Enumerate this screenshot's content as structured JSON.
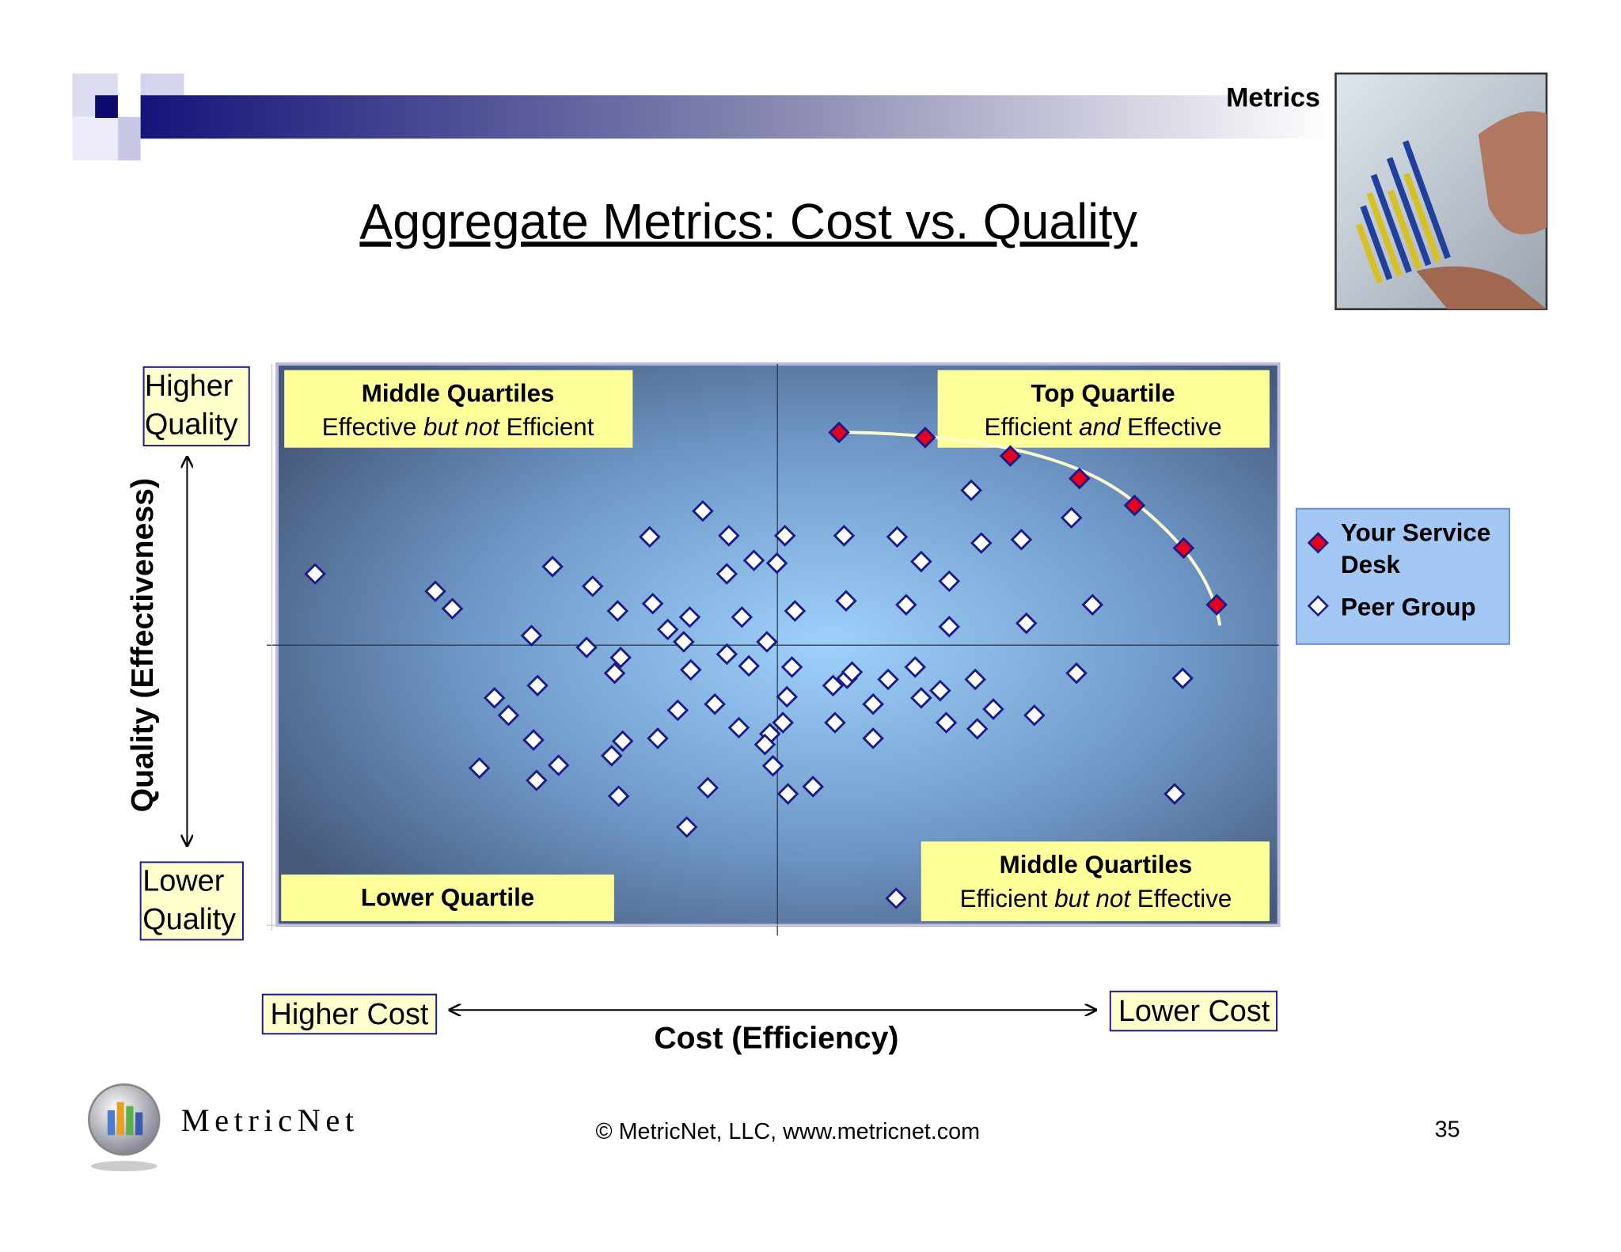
{
  "header": {
    "section": "Metrics",
    "title": "Aggregate Metrics: Cost vs. Quality"
  },
  "chart_data": {
    "type": "scatter",
    "x_label": "Cost (Efficiency)",
    "y_label": "Quality (Effectiveness)",
    "x_low_label": "Higher Cost",
    "x_high_label": "Lower Cost",
    "y_high_label": "Higher Quality",
    "y_low_label": "Lower Quality",
    "annotations": [
      {
        "title": "Middle Quartiles",
        "text": [
          "Effective ",
          "but not",
          " Efficient"
        ]
      },
      {
        "title": "Top Quartile",
        "text": [
          "Efficient ",
          "and",
          " Effective"
        ]
      },
      {
        "title": "Lower Quartile"
      },
      {
        "title": "Middle Quartiles",
        "text": [
          "Efficient ",
          "but not",
          " Effective"
        ]
      }
    ],
    "xlim": [
      0,
      100
    ],
    "ylim": [
      0,
      100
    ],
    "legend": "right",
    "series": [
      {
        "name": "Your Service Desk",
        "color": "#e8001c",
        "x": [
          56.1,
          64.7,
          73.2,
          80.1,
          85.6,
          90.5,
          93.8
        ],
        "values": [
          87.8,
          86.9,
          83.6,
          79.6,
          74.8,
          67.2,
          57.1
        ]
      },
      {
        "name": "Peer Group",
        "color": "#ffffff",
        "x": [
          3.8,
          15.8,
          17.5,
          27.5,
          31.5,
          37.2,
          42.5,
          45.1,
          44.9,
          47.6,
          49.9,
          50.7,
          56.6,
          61.9,
          64.3,
          67.1,
          70.3,
          74.3,
          79.3,
          69.3,
          34.0,
          37.5,
          41.2,
          39.0,
          40.6,
          46.4,
          51.7,
          56.8,
          62.8,
          67.1,
          74.8,
          81.4,
          25.4,
          30.9,
          34.3,
          33.7,
          44.9,
          47.1,
          48.9,
          51.4,
          41.3,
          21.7,
          26.0,
          23.1,
          25.6,
          20.2,
          25.9,
          28.1,
          34.1,
          33.4,
          34.5,
          38.0,
          40.0,
          43.7,
          46.1,
          43.0,
          40.9,
          50.9,
          50.5,
          49.2,
          48.7,
          49.5,
          51.0,
          53.5,
          55.5,
          56.9,
          57.4,
          55.7,
          59.5,
          59.5,
          61.0,
          63.7,
          64.3,
          66.2,
          66.8,
          69.7,
          69.9,
          71.5,
          75.6,
          79.8,
          90.4,
          89.6,
          61.8
        ],
        "values": [
          62.6,
          59.5,
          56.4,
          63.9,
          60.4,
          69.2,
          73.8,
          69.4,
          62.6,
          65.0,
          64.5,
          69.4,
          69.4,
          69.2,
          64.8,
          61.3,
          68.1,
          68.7,
          72.6,
          77.5,
          56.0,
          57.3,
          54.9,
          52.7,
          50.5,
          54.9,
          56.0,
          57.8,
          57.1,
          53.2,
          53.8,
          57.1,
          51.6,
          49.5,
          47.7,
          44.9,
          48.3,
          46.2,
          50.5,
          46.0,
          45.5,
          40.5,
          42.7,
          37.4,
          33.0,
          28.0,
          25.8,
          28.5,
          23.0,
          30.2,
          32.8,
          33.3,
          38.3,
          39.4,
          35.2,
          24.5,
          17.5,
          40.7,
          36.1,
          34.1,
          32.2,
          28.4,
          23.4,
          24.7,
          42.7,
          44.0,
          45.1,
          36.1,
          39.4,
          33.3,
          43.8,
          46.0,
          40.5,
          41.8,
          36.1,
          43.8,
          35.0,
          38.5,
          37.4,
          44.9,
          44.0,
          23.4,
          4.8
        ]
      }
    ]
  },
  "footer": {
    "logo": "MetricNet",
    "copyright": "© MetricNet, LLC, www.metricnet.com",
    "page": "35"
  }
}
